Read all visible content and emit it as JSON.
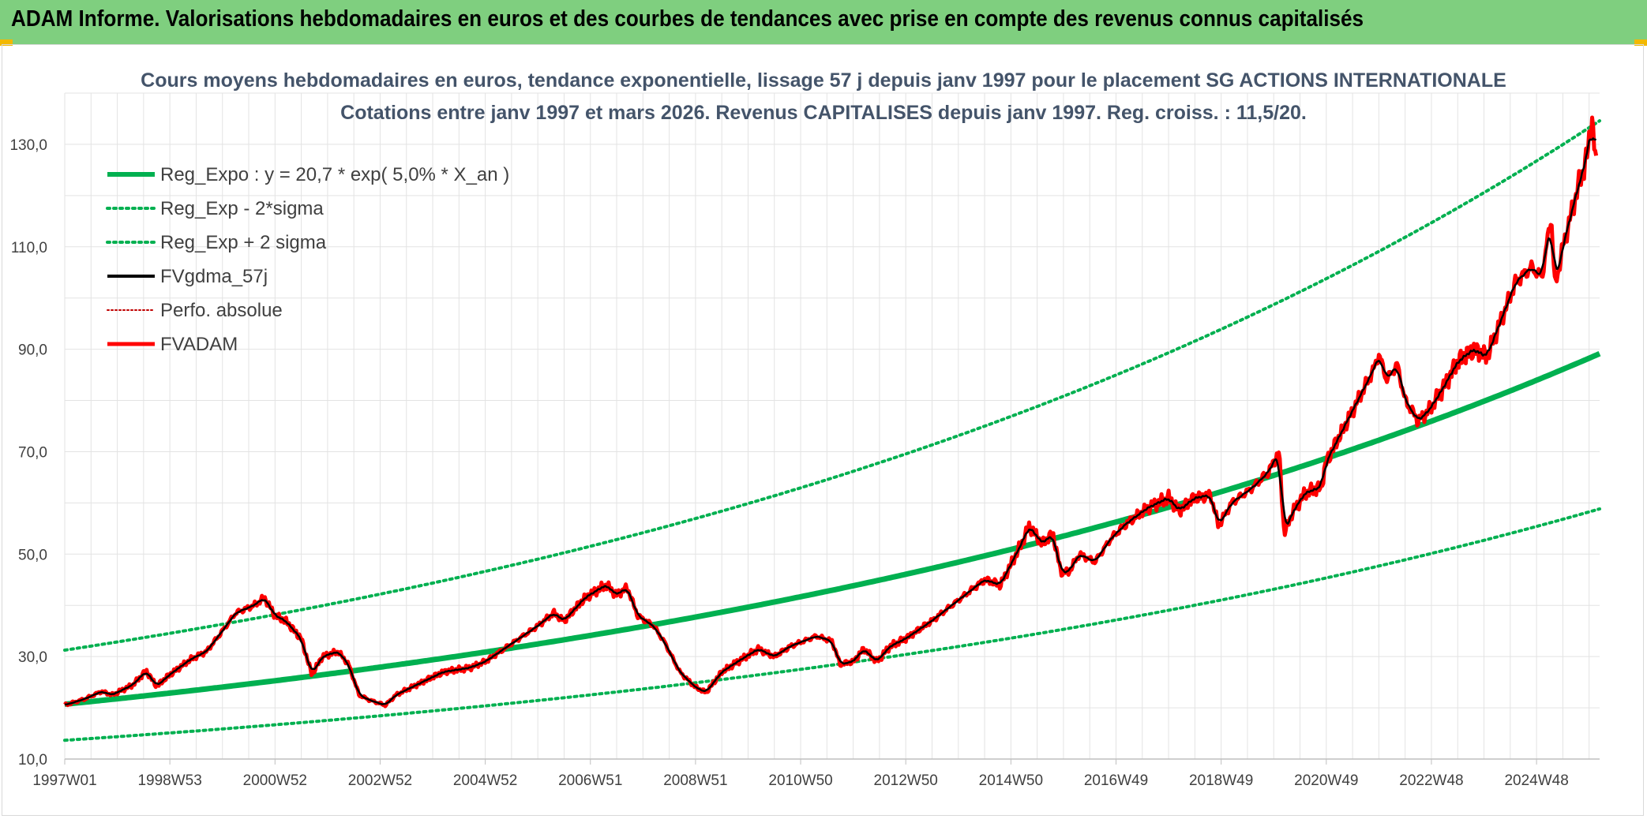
{
  "header": {
    "title": "ADAM Informe. Valorisations hebdomadaires en euros et des courbes de tendances avec prise en compte des revenus connus capitalisés",
    "bar_color": "#7fcf7f"
  },
  "chart_data": {
    "type": "line",
    "title_line1": "Cours moyens hebdomadaires en euros, tendance exponentielle, lissage 57 j depuis janv 1997 pour le placement SG ACTIONS INTERNATIONALE",
    "title_line2": "Cotations entre janv 1997 et mars 2026. Revenus CAPITALISES depuis janv 1997. Reg. croiss. : 11,5/20.",
    "xlabel": "",
    "ylabel": "",
    "x_range": [
      1997.0,
      2026.2
    ],
    "ylim": [
      10,
      140
    ],
    "y_ticks": [
      "10,0",
      "30,0",
      "50,0",
      "70,0",
      "90,0",
      "110,0",
      "130,0"
    ],
    "x_ticks": [
      {
        "label": "1997W01",
        "x": 1997.0
      },
      {
        "label": "1998W53",
        "x": 1999.0
      },
      {
        "label": "2000W52",
        "x": 2001.0
      },
      {
        "label": "2002W52",
        "x": 2003.0
      },
      {
        "label": "2004W52",
        "x": 2005.0
      },
      {
        "label": "2006W51",
        "x": 2007.0
      },
      {
        "label": "2008W51",
        "x": 2009.0
      },
      {
        "label": "2010W50",
        "x": 2011.0
      },
      {
        "label": "2012W50",
        "x": 2013.0
      },
      {
        "label": "2014W50",
        "x": 2015.0
      },
      {
        "label": "2016W49",
        "x": 2017.0
      },
      {
        "label": "2018W49",
        "x": 2019.0
      },
      {
        "label": "2020W49",
        "x": 2021.0
      },
      {
        "label": "2022W48",
        "x": 2023.0
      },
      {
        "label": "2024W48",
        "x": 2025.0
      }
    ],
    "grid": true,
    "legend_position": "top-left",
    "regression": {
      "a": 20.7,
      "rate": 0.05,
      "lower_factor": 0.66,
      "upper_factor": 1.51
    },
    "series": [
      {
        "name": "Reg_Expo : y = 20,7 * exp( 5,0% *  X_an )",
        "color": "#00b050",
        "style": "solid-thick"
      },
      {
        "name": "Reg_Exp - 2*sigma",
        "color": "#00b050",
        "style": "dotted"
      },
      {
        "name": "Reg_Exp + 2 sigma",
        "color": "#00b050",
        "style": "dotted"
      },
      {
        "name": "FVgdma_57j",
        "color": "#000000",
        "style": "solid"
      },
      {
        "name": "Perfo. absolue",
        "color": "#c00000",
        "style": "dotted-thin"
      },
      {
        "name": "FVADAM",
        "color": "#ff0000",
        "style": "solid-thick"
      }
    ],
    "fvadam_anchors": [
      [
        1997.0,
        20.5
      ],
      [
        1997.4,
        21.8
      ],
      [
        1997.7,
        23.2
      ],
      [
        1997.9,
        22.5
      ],
      [
        1998.3,
        24.5
      ],
      [
        1998.55,
        27.2
      ],
      [
        1998.75,
        24.2
      ],
      [
        1999.0,
        26.5
      ],
      [
        1999.4,
        29.5
      ],
      [
        1999.7,
        31.0
      ],
      [
        2000.0,
        35.0
      ],
      [
        2000.25,
        38.5
      ],
      [
        2000.6,
        40.0
      ],
      [
        2000.8,
        41.5
      ],
      [
        2001.0,
        38.0
      ],
      [
        2001.2,
        37.0
      ],
      [
        2001.5,
        33.5
      ],
      [
        2001.7,
        26.5
      ],
      [
        2001.9,
        30.0
      ],
      [
        2002.2,
        31.0
      ],
      [
        2002.4,
        28.5
      ],
      [
        2002.6,
        22.5
      ],
      [
        2002.8,
        21.5
      ],
      [
        2003.1,
        20.5
      ],
      [
        2003.3,
        22.5
      ],
      [
        2003.8,
        25.0
      ],
      [
        2004.2,
        27.0
      ],
      [
        2004.7,
        27.8
      ],
      [
        2005.0,
        29.0
      ],
      [
        2005.5,
        32.5
      ],
      [
        2006.0,
        36.0
      ],
      [
        2006.3,
        38.5
      ],
      [
        2006.5,
        37.0
      ],
      [
        2006.9,
        41.5
      ],
      [
        2007.3,
        44.0
      ],
      [
        2007.5,
        42.0
      ],
      [
        2007.7,
        43.5
      ],
      [
        2007.9,
        38.0
      ],
      [
        2008.2,
        36.0
      ],
      [
        2008.4,
        33.0
      ],
      [
        2008.7,
        27.0
      ],
      [
        2009.0,
        24.0
      ],
      [
        2009.2,
        23.0
      ],
      [
        2009.5,
        27.0
      ],
      [
        2009.8,
        29.0
      ],
      [
        2010.2,
        31.5
      ],
      [
        2010.5,
        30.0
      ],
      [
        2010.8,
        32.0
      ],
      [
        2011.3,
        34.0
      ],
      [
        2011.6,
        33.0
      ],
      [
        2011.75,
        28.5
      ],
      [
        2012.0,
        29.0
      ],
      [
        2012.2,
        31.5
      ],
      [
        2012.45,
        29.0
      ],
      [
        2012.7,
        32.0
      ],
      [
        2013.0,
        33.5
      ],
      [
        2013.5,
        37.0
      ],
      [
        2014.0,
        41.0
      ],
      [
        2014.5,
        45.0
      ],
      [
        2014.8,
        44.0
      ],
      [
        2015.2,
        52.0
      ],
      [
        2015.35,
        55.5
      ],
      [
        2015.6,
        52.0
      ],
      [
        2015.8,
        54.0
      ],
      [
        2015.95,
        46.5
      ],
      [
        2016.1,
        46.5
      ],
      [
        2016.3,
        50.0
      ],
      [
        2016.6,
        48.5
      ],
      [
        2016.9,
        53.0
      ],
      [
        2017.2,
        56.0
      ],
      [
        2017.6,
        59.0
      ],
      [
        2018.0,
        61.0
      ],
      [
        2018.2,
        58.5
      ],
      [
        2018.5,
        61.0
      ],
      [
        2018.8,
        61.5
      ],
      [
        2018.95,
        55.5
      ],
      [
        2019.2,
        60.0
      ],
      [
        2019.6,
        63.0
      ],
      [
        2019.9,
        66.0
      ],
      [
        2020.1,
        70.0
      ],
      [
        2020.2,
        54.0
      ],
      [
        2020.35,
        58.0
      ],
      [
        2020.6,
        62.0
      ],
      [
        2020.9,
        63.0
      ],
      [
        2021.0,
        68.0
      ],
      [
        2021.3,
        74.0
      ],
      [
        2021.6,
        80.0
      ],
      [
        2021.9,
        86.0
      ],
      [
        2022.0,
        89.0
      ],
      [
        2022.15,
        84.0
      ],
      [
        2022.35,
        87.0
      ],
      [
        2022.5,
        80.0
      ],
      [
        2022.75,
        76.0
      ],
      [
        2022.95,
        78.0
      ],
      [
        2023.2,
        82.0
      ],
      [
        2023.5,
        87.5
      ],
      [
        2023.8,
        90.0
      ],
      [
        2024.05,
        88.5
      ],
      [
        2024.3,
        95.0
      ],
      [
        2024.6,
        103.0
      ],
      [
        2024.9,
        106.0
      ],
      [
        2025.1,
        104.0
      ],
      [
        2025.28,
        116.0
      ],
      [
        2025.35,
        102.0
      ],
      [
        2025.5,
        110.0
      ],
      [
        2025.8,
        122.0
      ],
      [
        2025.95,
        127.0
      ],
      [
        2026.05,
        135.0
      ],
      [
        2026.15,
        124.0
      ]
    ]
  }
}
